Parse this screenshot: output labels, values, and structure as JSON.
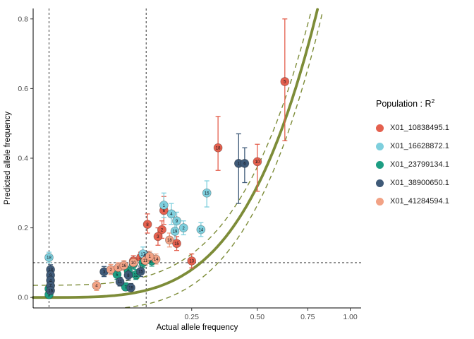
{
  "chart_data": {
    "type": "scatter",
    "title": "",
    "xlabel": "Actual allele frequency",
    "ylabel": "Predicted allele frequency",
    "x_scale": "sqrt",
    "xlim": [
      0,
      1.07
    ],
    "ylim": [
      -0.03,
      0.83
    ],
    "x_ticks": [
      {
        "v": 0.25,
        "label": "0.25"
      },
      {
        "v": 0.5,
        "label": "0.50"
      },
      {
        "v": 0.75,
        "label": "0.75"
      },
      {
        "v": 1.0,
        "label": "1.00"
      }
    ],
    "y_ticks": [
      {
        "v": 0.0,
        "label": "0.0"
      },
      {
        "v": 0.2,
        "label": "0.2"
      },
      {
        "v": 0.4,
        "label": "0.4"
      },
      {
        "v": 0.6,
        "label": "0.6"
      },
      {
        "v": 0.8,
        "label": "0.8"
      }
    ],
    "reference_lines": {
      "style": "dashed",
      "color": "#1a1a1a",
      "vertical_x": [
        0.0025,
        0.127
      ],
      "horizontal_y": [
        0.1
      ]
    },
    "fit_curve": {
      "type": "quadratic",
      "coefficient": 1.28,
      "color": "#7d8c38",
      "band_base": 0.035,
      "band_slope": 0.04
    },
    "legend": {
      "title_base": "Population : R",
      "title_sup": "2",
      "position": "right"
    },
    "series": [
      {
        "name": "X01_10838495.1",
        "color": "#e4604e",
        "points": [
          {
            "label": "5",
            "x": 0.63,
            "y": 0.62,
            "lo": 0.45,
            "hi": 0.8
          },
          {
            "label": "10",
            "x": 0.5,
            "y": 0.39,
            "lo": 0.305,
            "hi": 0.44
          },
          {
            "label": "18",
            "x": 0.34,
            "y": 0.43,
            "lo": 0.365,
            "hi": 0.52
          },
          {
            "label": "6",
            "x": 0.17,
            "y": 0.25,
            "lo": 0.21,
            "hi": 0.29
          },
          {
            "label": "8",
            "x": 0.13,
            "y": 0.21,
            "lo": 0.185,
            "hi": 0.24
          },
          {
            "label": "2",
            "x": 0.165,
            "y": 0.195,
            "lo": 0.17,
            "hi": 0.22
          },
          {
            "label": "3",
            "x": 0.155,
            "y": 0.175,
            "lo": 0.15,
            "hi": 0.2
          },
          {
            "label": "15",
            "x": 0.205,
            "y": 0.155,
            "lo": 0.135,
            "hi": 0.175
          },
          {
            "label": "13",
            "x": 0.25,
            "y": 0.105,
            "lo": 0.085,
            "hi": 0.125
          },
          {
            "label": "11",
            "x": 0.115,
            "y": 0.115,
            "lo": 0.1,
            "hi": 0.13
          },
          {
            "label": "7",
            "x": 0.1,
            "y": 0.105,
            "lo": 0.09,
            "hi": 0.12
          }
        ]
      },
      {
        "name": "X01_16628872.1",
        "color": "#7ecfdd",
        "points": [
          {
            "label": "1",
            "x": 0.17,
            "y": 0.265,
            "lo": 0.23,
            "hi": 0.3
          },
          {
            "label": "4",
            "x": 0.19,
            "y": 0.24,
            "lo": 0.21,
            "hi": 0.27
          },
          {
            "label": "9",
            "x": 0.205,
            "y": 0.22,
            "lo": 0.195,
            "hi": 0.245
          },
          {
            "label": "19",
            "x": 0.2,
            "y": 0.19,
            "lo": 0.165,
            "hi": 0.215
          },
          {
            "label": "14",
            "x": 0.28,
            "y": 0.195,
            "lo": 0.175,
            "hi": 0.215
          },
          {
            "label": "15",
            "x": 0.3,
            "y": 0.3,
            "lo": 0.26,
            "hi": 0.335
          },
          {
            "label": "18",
            "x": 0.0025,
            "y": 0.115,
            "lo": 0.1,
            "hi": 0.13
          },
          {
            "label": "2",
            "x": 0.225,
            "y": 0.2,
            "lo": 0.18,
            "hi": 0.22
          },
          {
            "label": "17",
            "x": 0.12,
            "y": 0.125,
            "lo": 0.105,
            "hi": 0.145
          }
        ]
      },
      {
        "name": "X01_23799134.1",
        "color": "#1d9e83",
        "points": [
          {
            "label": "6",
            "x": 0.0025,
            "y": 0.025,
            "lo": 0.015,
            "hi": 0.037
          },
          {
            "label": "3",
            "x": 0.0025,
            "y": 0.008,
            "lo": 0.002,
            "hi": 0.018
          },
          {
            "label": "5",
            "x": 0.07,
            "y": 0.066,
            "lo": 0.052,
            "hi": 0.08
          },
          {
            "label": "9",
            "x": 0.09,
            "y": 0.076,
            "lo": 0.062,
            "hi": 0.09
          },
          {
            "label": "17",
            "x": 0.1,
            "y": 0.096,
            "lo": 0.082,
            "hi": 0.11
          },
          {
            "label": "13",
            "x": 0.12,
            "y": 0.1,
            "lo": 0.086,
            "hi": 0.115
          },
          {
            "label": "7",
            "x": 0.085,
            "y": 0.03,
            "lo": 0.02,
            "hi": 0.042
          },
          {
            "label": "12",
            "x": 0.105,
            "y": 0.065,
            "lo": 0.052,
            "hi": 0.08
          },
          {
            "label": "10",
            "x": 0.14,
            "y": 0.105,
            "lo": 0.09,
            "hi": 0.12
          }
        ]
      },
      {
        "name": "X01_38900650.1",
        "color": "#3f5a78",
        "points": [
          {
            "label": "1",
            "x": 0.42,
            "y": 0.385,
            "lo": 0.27,
            "hi": 0.47
          },
          {
            "label": "6",
            "x": 0.445,
            "y": 0.385,
            "lo": 0.33,
            "hi": 0.43
          },
          {
            "label": "13",
            "x": 0.003,
            "y": 0.08,
            "lo": 0.068,
            "hi": 0.094
          },
          {
            "label": "9",
            "x": 0.003,
            "y": 0.064,
            "lo": 0.053,
            "hi": 0.076
          },
          {
            "label": "4",
            "x": 0.003,
            "y": 0.049,
            "lo": 0.039,
            "hi": 0.06
          },
          {
            "label": "7",
            "x": 0.003,
            "y": 0.034,
            "lo": 0.024,
            "hi": 0.045
          },
          {
            "label": "16",
            "x": 0.003,
            "y": 0.02,
            "lo": 0.012,
            "hi": 0.03
          },
          {
            "label": "3",
            "x": 0.05,
            "y": 0.074,
            "lo": 0.06,
            "hi": 0.089
          },
          {
            "label": "11",
            "x": 0.075,
            "y": 0.045,
            "lo": 0.033,
            "hi": 0.058
          },
          {
            "label": "19",
            "x": 0.095,
            "y": 0.028,
            "lo": 0.018,
            "hi": 0.04
          },
          {
            "label": "8",
            "x": 0.09,
            "y": 0.064,
            "lo": 0.05,
            "hi": 0.078
          },
          {
            "label": "15",
            "x": 0.115,
            "y": 0.075,
            "lo": 0.06,
            "hi": 0.09
          },
          {
            "label": "12",
            "x": 0.13,
            "y": 0.115,
            "lo": 0.1,
            "hi": 0.132
          }
        ]
      },
      {
        "name": "X01_41284594.1",
        "color": "#f2a285",
        "points": [
          {
            "label": "4",
            "x": 0.04,
            "y": 0.034,
            "lo": 0.02,
            "hi": 0.048
          },
          {
            "label": "2",
            "x": 0.06,
            "y": 0.08,
            "lo": 0.066,
            "hi": 0.095
          },
          {
            "label": "8",
            "x": 0.072,
            "y": 0.086,
            "lo": 0.072,
            "hi": 0.1
          },
          {
            "label": "16",
            "x": 0.082,
            "y": 0.092,
            "lo": 0.078,
            "hi": 0.106
          },
          {
            "label": "10",
            "x": 0.1,
            "y": 0.1,
            "lo": 0.086,
            "hi": 0.115
          },
          {
            "label": "11",
            "x": 0.125,
            "y": 0.106,
            "lo": 0.092,
            "hi": 0.12
          },
          {
            "label": "14",
            "x": 0.15,
            "y": 0.11,
            "lo": 0.096,
            "hi": 0.125
          },
          {
            "label": "18",
            "x": 0.185,
            "y": 0.165,
            "lo": 0.145,
            "hi": 0.185
          },
          {
            "label": "1",
            "x": 0.135,
            "y": 0.118,
            "lo": 0.104,
            "hi": 0.133
          }
        ]
      }
    ]
  }
}
